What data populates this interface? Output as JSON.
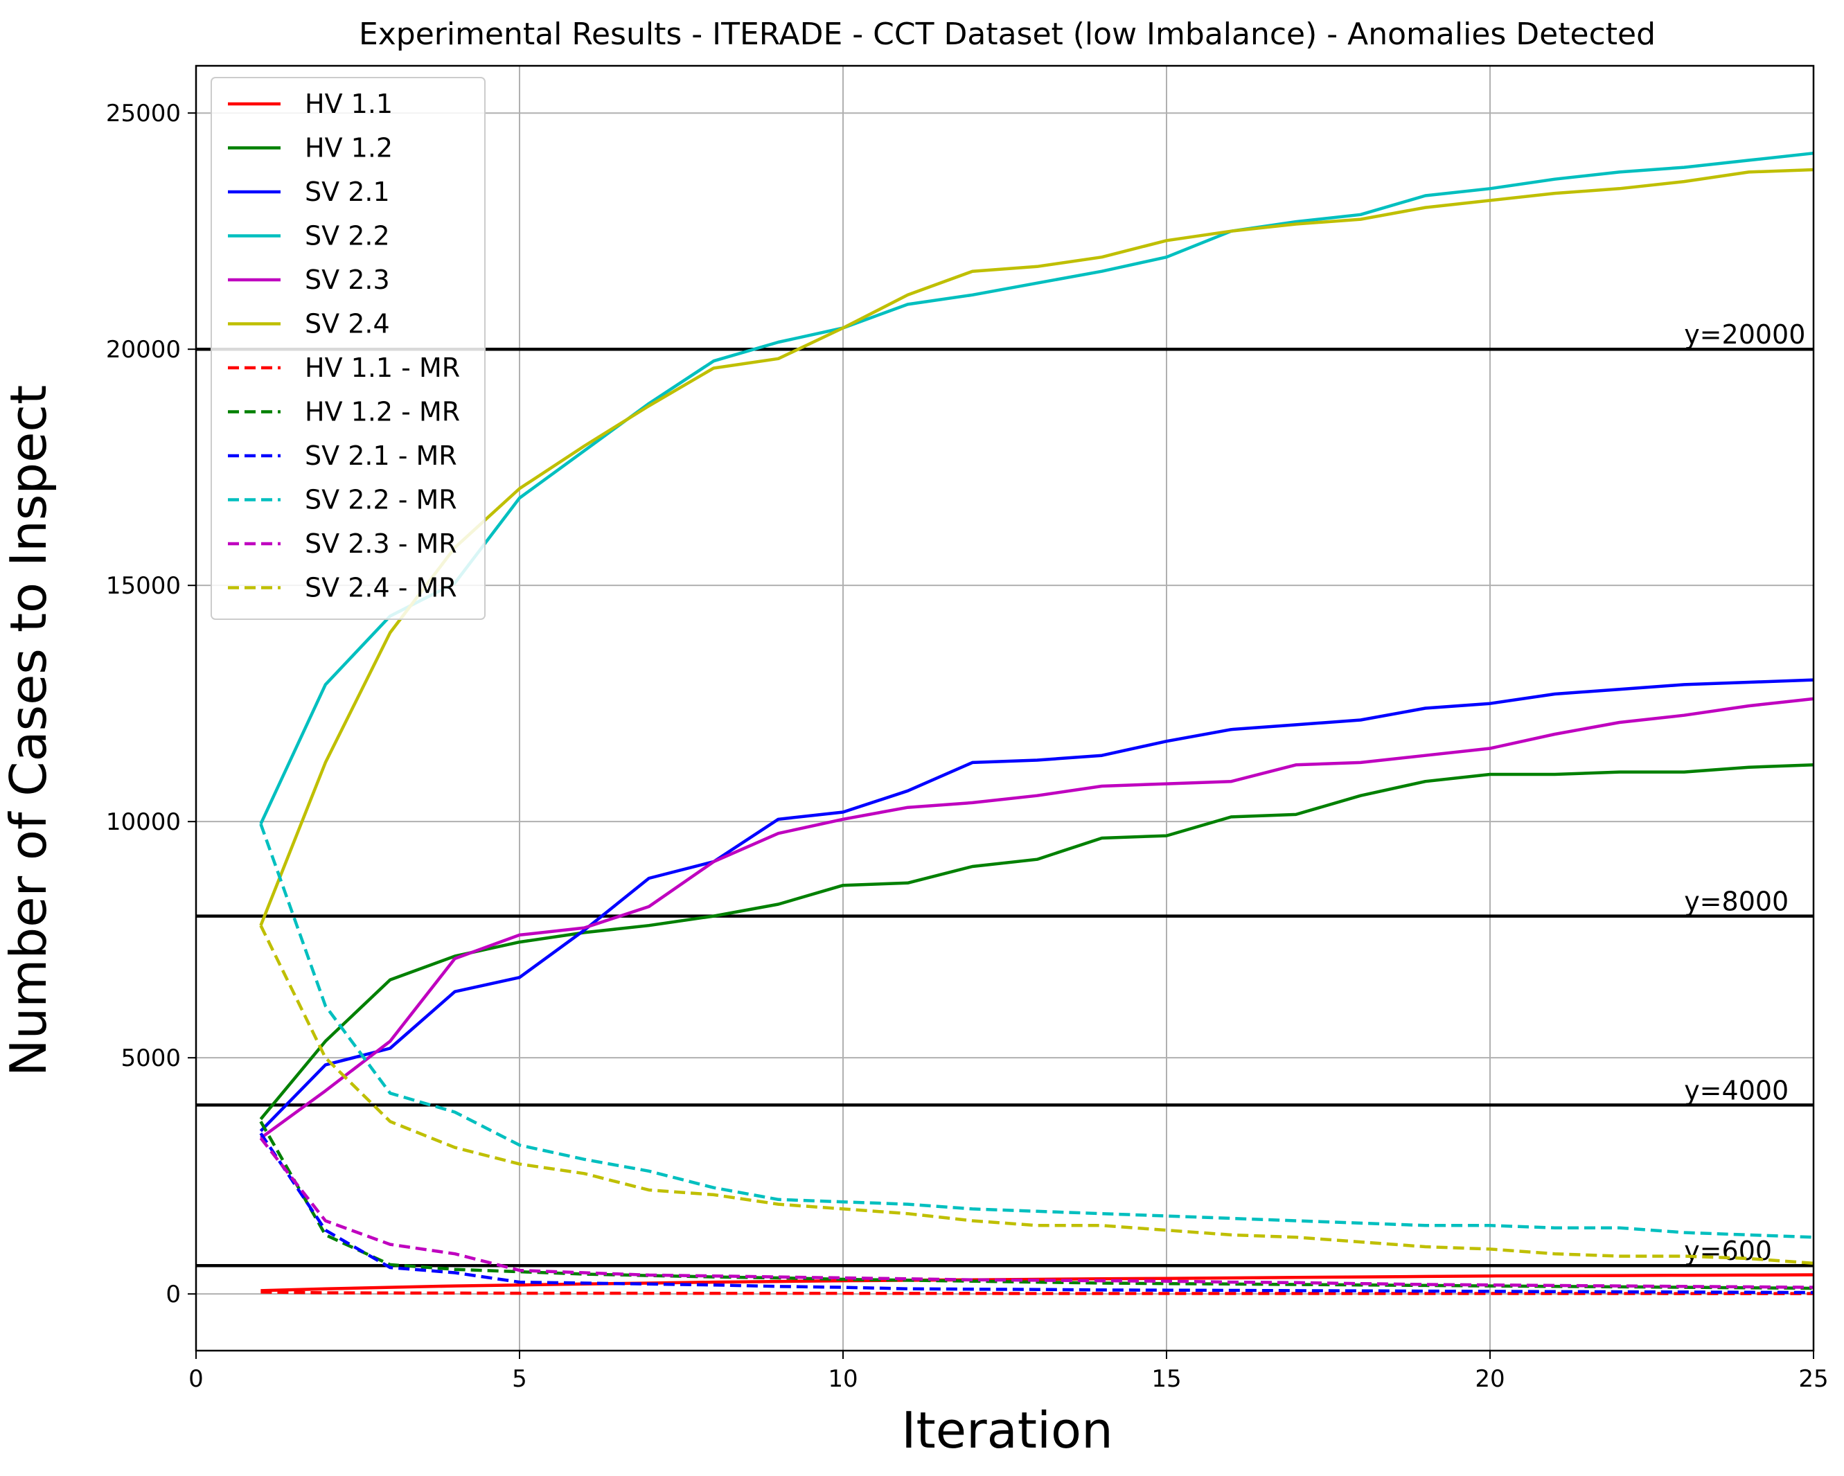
{
  "chart_data": {
    "type": "line",
    "title": "Experimental Results - ITERADE - CCT Dataset (low Imbalance) - Anomalies Detected",
    "xlabel": "Iteration",
    "ylabel": "Number of Cases to Inspect",
    "xlim": [
      0,
      25
    ],
    "ylim": [
      -1200,
      26000
    ],
    "xticks": [
      0,
      5,
      10,
      15,
      20,
      25
    ],
    "yticks": [
      0,
      5000,
      10000,
      15000,
      20000,
      25000
    ],
    "grid": true,
    "legend_position": "top-left",
    "x": [
      1,
      2,
      3,
      4,
      5,
      6,
      7,
      8,
      9,
      10,
      11,
      12,
      13,
      14,
      15,
      16,
      17,
      18,
      19,
      20,
      21,
      22,
      23,
      24,
      25
    ],
    "series": [
      {
        "name": "HV 1.1",
        "color": "#ff0000",
        "style": "solid",
        "values": [
          70,
          110,
          140,
          170,
          190,
          210,
          230,
          250,
          265,
          280,
          290,
          300,
          310,
          320,
          330,
          340,
          350,
          360,
          370,
          380,
          385,
          390,
          395,
          400,
          405
        ]
      },
      {
        "name": "HV 1.2",
        "color": "#008000",
        "style": "solid",
        "values": [
          3700,
          5350,
          6650,
          7150,
          7450,
          7650,
          7800,
          8000,
          8250,
          8650,
          8700,
          9050,
          9200,
          9650,
          9700,
          10100,
          10150,
          10550,
          10850,
          11000,
          11000,
          11050,
          11050,
          11150,
          11200
        ]
      },
      {
        "name": "SV 2.1",
        "color": "#0000ff",
        "style": "solid",
        "values": [
          3450,
          4850,
          5200,
          6400,
          6700,
          7700,
          8800,
          9150,
          10050,
          10200,
          10650,
          11250,
          11300,
          11400,
          11700,
          11950,
          12050,
          12150,
          12400,
          12500,
          12700,
          12800,
          12900,
          12950,
          13000
        ]
      },
      {
        "name": "SV 2.2",
        "color": "#00bfbf",
        "style": "solid",
        "values": [
          9950,
          12900,
          14350,
          15050,
          16850,
          17850,
          18850,
          19750,
          20150,
          20450,
          20950,
          21150,
          21400,
          21650,
          21950,
          22500,
          22700,
          22850,
          23250,
          23400,
          23600,
          23750,
          23850,
          24000,
          24150
        ]
      },
      {
        "name": "SV 2.3",
        "color": "#bf00bf",
        "style": "solid",
        "values": [
          3300,
          4300,
          5350,
          7100,
          7600,
          7750,
          8200,
          9150,
          9750,
          10050,
          10300,
          10400,
          10550,
          10750,
          10800,
          10850,
          11200,
          11250,
          11400,
          11550,
          11850,
          12100,
          12250,
          12450,
          12600
        ]
      },
      {
        "name": "SV 2.4",
        "color": "#bfbf00",
        "style": "solid",
        "values": [
          7800,
          11250,
          14000,
          15800,
          17050,
          17950,
          18800,
          19600,
          19800,
          20450,
          21150,
          21650,
          21750,
          21950,
          22300,
          22500,
          22650,
          22750,
          23000,
          23150,
          23300,
          23400,
          23550,
          23750,
          23800
        ]
      },
      {
        "name": "HV 1.1 - MR",
        "color": "#ff0000",
        "style": "dashed",
        "values": [
          40,
          25,
          20,
          18,
          16,
          15,
          14,
          13,
          12,
          12,
          11,
          11,
          10,
          10,
          10,
          10,
          9,
          9,
          9,
          9,
          9,
          9,
          8,
          8,
          8
        ]
      },
      {
        "name": "HV 1.2 - MR",
        "color": "#008000",
        "style": "dashed",
        "values": [
          3650,
          1250,
          620,
          520,
          470,
          420,
          390,
          360,
          340,
          310,
          290,
          270,
          250,
          230,
          220,
          210,
          200,
          190,
          180,
          170,
          160,
          150,
          140,
          130,
          120
        ]
      },
      {
        "name": "SV 2.1 - MR",
        "color": "#0000ff",
        "style": "dashed",
        "values": [
          3400,
          1350,
          560,
          450,
          250,
          230,
          210,
          190,
          160,
          140,
          110,
          100,
          95,
          85,
          80,
          75,
          70,
          65,
          60,
          55,
          50,
          45,
          40,
          35,
          30
        ]
      },
      {
        "name": "SV 2.2 - MR",
        "color": "#00bfbf",
        "style": "dashed",
        "values": [
          9950,
          6100,
          4250,
          3850,
          3150,
          2850,
          2600,
          2250,
          2000,
          1950,
          1900,
          1800,
          1750,
          1700,
          1650,
          1600,
          1550,
          1500,
          1450,
          1450,
          1400,
          1400,
          1300,
          1250,
          1200
        ]
      },
      {
        "name": "SV 2.3 - MR",
        "color": "#bf00bf",
        "style": "dashed",
        "values": [
          3300,
          1550,
          1050,
          850,
          500,
          450,
          400,
          380,
          360,
          340,
          320,
          300,
          290,
          280,
          270,
          250,
          240,
          220,
          200,
          190,
          180,
          170,
          160,
          150,
          140
        ]
      },
      {
        "name": "SV 2.4 - MR",
        "color": "#bfbf00",
        "style": "dashed",
        "values": [
          7800,
          5000,
          3650,
          3100,
          2750,
          2550,
          2200,
          2100,
          1900,
          1800,
          1700,
          1550,
          1450,
          1450,
          1350,
          1250,
          1200,
          1100,
          1000,
          950,
          850,
          800,
          800,
          750,
          650
        ]
      }
    ],
    "reference_lines": [
      {
        "y": 20000,
        "label": "y=20000"
      },
      {
        "y": 8000,
        "label": "y=8000"
      },
      {
        "y": 4000,
        "label": "y=4000"
      },
      {
        "y": 600,
        "label": "y=600"
      }
    ]
  }
}
